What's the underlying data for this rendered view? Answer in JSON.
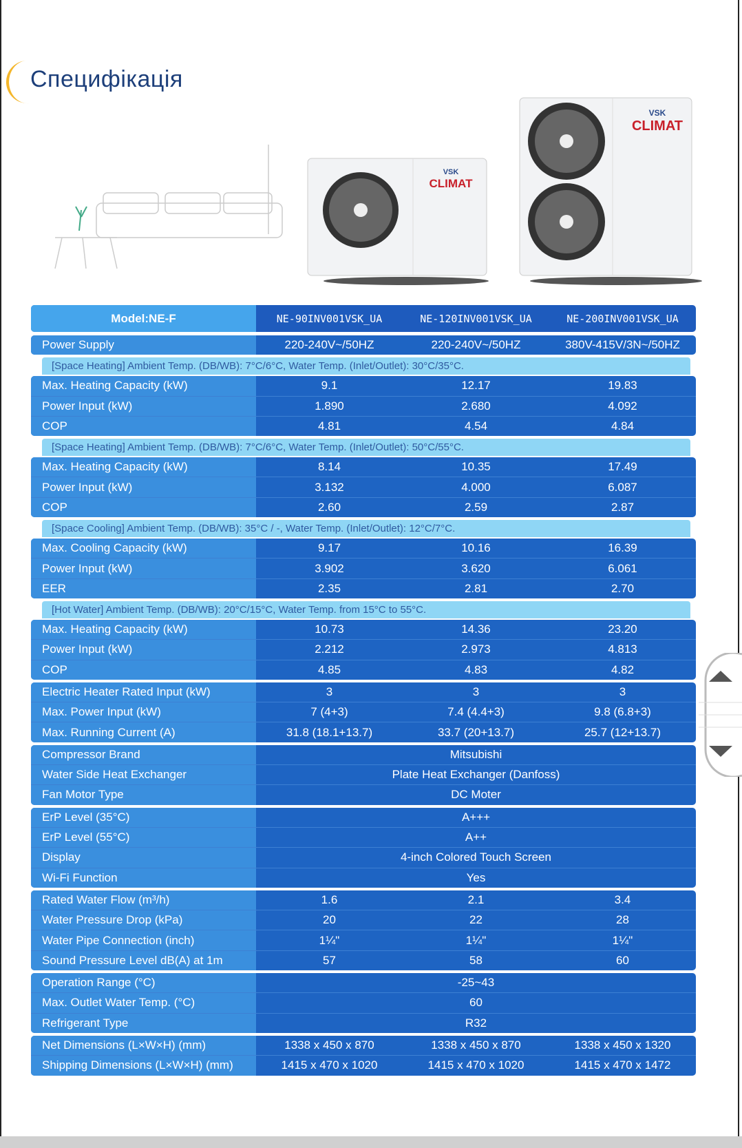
{
  "title": "Специфікація",
  "logo": {
    "top": "VSK",
    "bottom": "CLIMAT"
  },
  "table": {
    "header": {
      "label": "Model:NE-F",
      "models": [
        "NE-90INV001VSK_UA",
        "NE-120INV001VSK_UA",
        "NE-200INV001VSK_UA"
      ]
    },
    "groups": [
      {
        "rows": [
          {
            "label": "Power Supply",
            "values": [
              "220-240V~/50HZ",
              "220-240V~/50HZ",
              "380V-415V/3N~/50HZ"
            ]
          }
        ]
      },
      {
        "note": "[Space Heating] Ambient Temp. (DB/WB): 7°C/6°C, Water Temp. (Inlet/Outlet): 30°C/35°C.",
        "rows": [
          {
            "label": "Max. Heating Capacity (kW)",
            "values": [
              "9.1",
              "12.17",
              "19.83"
            ]
          },
          {
            "label": "Power Input (kW)",
            "values": [
              "1.890",
              "2.680",
              "4.092"
            ]
          },
          {
            "label": "COP",
            "values": [
              "4.81",
              "4.54",
              "4.84"
            ]
          }
        ]
      },
      {
        "note": "[Space Heating] Ambient Temp. (DB/WB): 7°C/6°C, Water Temp. (Inlet/Outlet): 50°C/55°C.",
        "rows": [
          {
            "label": "Max. Heating Capacity (kW)",
            "values": [
              "8.14",
              "10.35",
              "17.49"
            ]
          },
          {
            "label": "Power Input (kW)",
            "values": [
              "3.132",
              "4.000",
              "6.087"
            ]
          },
          {
            "label": "COP",
            "values": [
              "2.60",
              "2.59",
              "2.87"
            ]
          }
        ]
      },
      {
        "note": "[Space Cooling] Ambient Temp. (DB/WB): 35°C / -, Water Temp. (Inlet/Outlet): 12°C/7°C.",
        "rows": [
          {
            "label": "Max. Cooling Capacity (kW)",
            "values": [
              "9.17",
              "10.16",
              "16.39"
            ]
          },
          {
            "label": "Power Input (kW)",
            "values": [
              "3.902",
              "3.620",
              "6.061"
            ]
          },
          {
            "label": "EER",
            "values": [
              "2.35",
              "2.81",
              "2.70"
            ]
          }
        ]
      },
      {
        "note": "[Hot Water] Ambient Temp. (DB/WB): 20°C/15°C, Water Temp. from 15°C to 55°C.",
        "rows": [
          {
            "label": "Max. Heating Capacity (kW)",
            "values": [
              "10.73",
              "14.36",
              "23.20"
            ]
          },
          {
            "label": "Power Input (kW)",
            "values": [
              "2.212",
              "2.973",
              "4.813"
            ]
          },
          {
            "label": "COP",
            "values": [
              "4.85",
              "4.83",
              "4.82"
            ]
          }
        ]
      },
      {
        "rows": [
          {
            "label": "Electric Heater Rated Input (kW)",
            "values": [
              "3",
              "3",
              "3"
            ]
          },
          {
            "label": "Max. Power Input (kW)",
            "values": [
              "7 (4+3)",
              "7.4 (4.4+3)",
              "9.8 (6.8+3)"
            ]
          },
          {
            "label": "Max. Running Current (A)",
            "values": [
              "31.8 (18.1+13.7)",
              "33.7 (20+13.7)",
              "25.7 (12+13.7)"
            ]
          }
        ]
      },
      {
        "rows": [
          {
            "label": "Compressor Brand",
            "values": [
              "Mitsubishi"
            ]
          },
          {
            "label": "Water Side Heat Exchanger",
            "values": [
              "Plate Heat Exchanger (Danfoss)"
            ]
          },
          {
            "label": "Fan Motor Type",
            "values": [
              "DC Moter"
            ]
          }
        ]
      },
      {
        "rows": [
          {
            "label": "ErP Level (35°C)",
            "values": [
              "A+++"
            ]
          },
          {
            "label": "ErP Level (55°C)",
            "values": [
              "A++"
            ]
          },
          {
            "label": "Display",
            "values": [
              "4-inch Colored Touch Screen"
            ]
          },
          {
            "label": "Wi-Fi Function",
            "values": [
              "Yes"
            ]
          }
        ]
      },
      {
        "rows": [
          {
            "label": "Rated Water Flow (m³/h)",
            "values": [
              "1.6",
              "2.1",
              "3.4"
            ]
          },
          {
            "label": "Water Pressure Drop (kPa)",
            "values": [
              "20",
              "22",
              "28"
            ]
          },
          {
            "label": "Water Pipe Connection (inch)",
            "values": [
              "1¼\"",
              "1¼\"",
              "1¼\""
            ]
          },
          {
            "label": "Sound Pressure Level dB(A) at 1m",
            "values": [
              "57",
              "58",
              "60"
            ]
          }
        ]
      },
      {
        "rows": [
          {
            "label": "Operation Range (°C)",
            "values": [
              "-25~43"
            ]
          },
          {
            "label": "Max. Outlet Water Temp. (°C)",
            "values": [
              "60"
            ]
          },
          {
            "label": "Refrigerant Type",
            "values": [
              "R32"
            ]
          }
        ]
      },
      {
        "rows": [
          {
            "label": "Net Dimensions (L×W×H) (mm)",
            "values": [
              "1338 x 450 x 870",
              "1338 x 450 x 870",
              "1338 x 450 x 1320"
            ]
          },
          {
            "label": "Shipping Dimensions (L×W×H) (mm)",
            "values": [
              "1415 x 470 x 1020",
              "1415 x 470 x 1020",
              "1415 x 470 x 1472"
            ]
          }
        ]
      }
    ]
  }
}
